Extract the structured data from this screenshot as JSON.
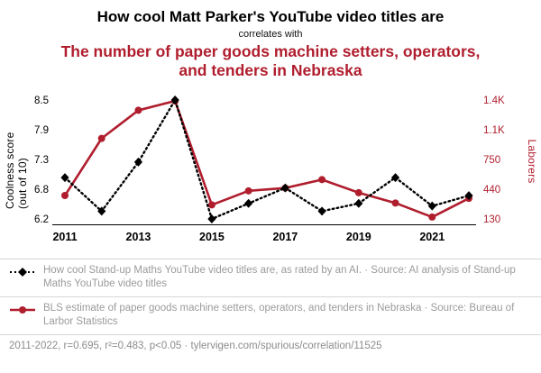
{
  "colors": {
    "accent": "#b01e2e",
    "black_series": "#000000"
  },
  "header": {
    "title": "How cool Matt Parker's YouTube video titles are",
    "connector": "correlates with",
    "subtitle": "The number of paper goods machine setters, operators, and tenders in Nebraska"
  },
  "chart": {
    "left_axis_label": "Coolness score (out of 10)",
    "right_axis_label": "Laborers"
  },
  "chart_data": {
    "type": "line",
    "x": [
      2011,
      2012,
      2013,
      2014,
      2015,
      2016,
      2017,
      2018,
      2019,
      2020,
      2021,
      2022
    ],
    "x_tick_years": [
      2011,
      2013,
      2015,
      2017,
      2019,
      2021
    ],
    "left_axis": {
      "min": 6.2,
      "max": 8.5,
      "ticks": [
        "8.5",
        "7.9",
        "7.3",
        "6.8",
        "6.2"
      ]
    },
    "right_axis": {
      "min": 130,
      "max": 1400,
      "ticks": [
        "1.4K",
        "1.1K",
        "750",
        "440",
        "130"
      ]
    },
    "series": [
      {
        "name": "How cool Stand-up Maths YouTube video titles are",
        "axis": "left",
        "color": "#000000",
        "marker": "diamond",
        "line_style": "dotted",
        "values": [
          7.0,
          6.35,
          7.3,
          8.5,
          6.2,
          6.5,
          6.8,
          6.35,
          6.5,
          7.0,
          6.45,
          6.65
        ]
      },
      {
        "name": "Paper goods machine setters, operators, and tenders in Nebraska",
        "axis": "right",
        "color": "#b01e2e",
        "marker": "circle",
        "line_style": "solid",
        "values": [
          380,
          990,
          1290,
          1390,
          280,
          430,
          460,
          550,
          410,
          300,
          150,
          350
        ]
      }
    ],
    "title": "How cool Matt Parker's YouTube video titles are correlates with The number of paper goods machine setters, operators, and tenders in Nebraska",
    "legend_position": "bottom",
    "grid": false
  },
  "legend": [
    {
      "text": "How cool Stand-up Maths YouTube video titles are, as rated by an AI. · Source: AI analysis of Stand-up Maths YouTube video titles"
    },
    {
      "text": "BLS estimate of paper goods machine setters, operators, and tenders in Nebraska · Source: Bureau of Larbor Statistics"
    }
  ],
  "footer": {
    "text": "2011-2022, r=0.695, r²=0.483, p<0.05 · tylervigen.com/spurious/correlation/11525"
  }
}
